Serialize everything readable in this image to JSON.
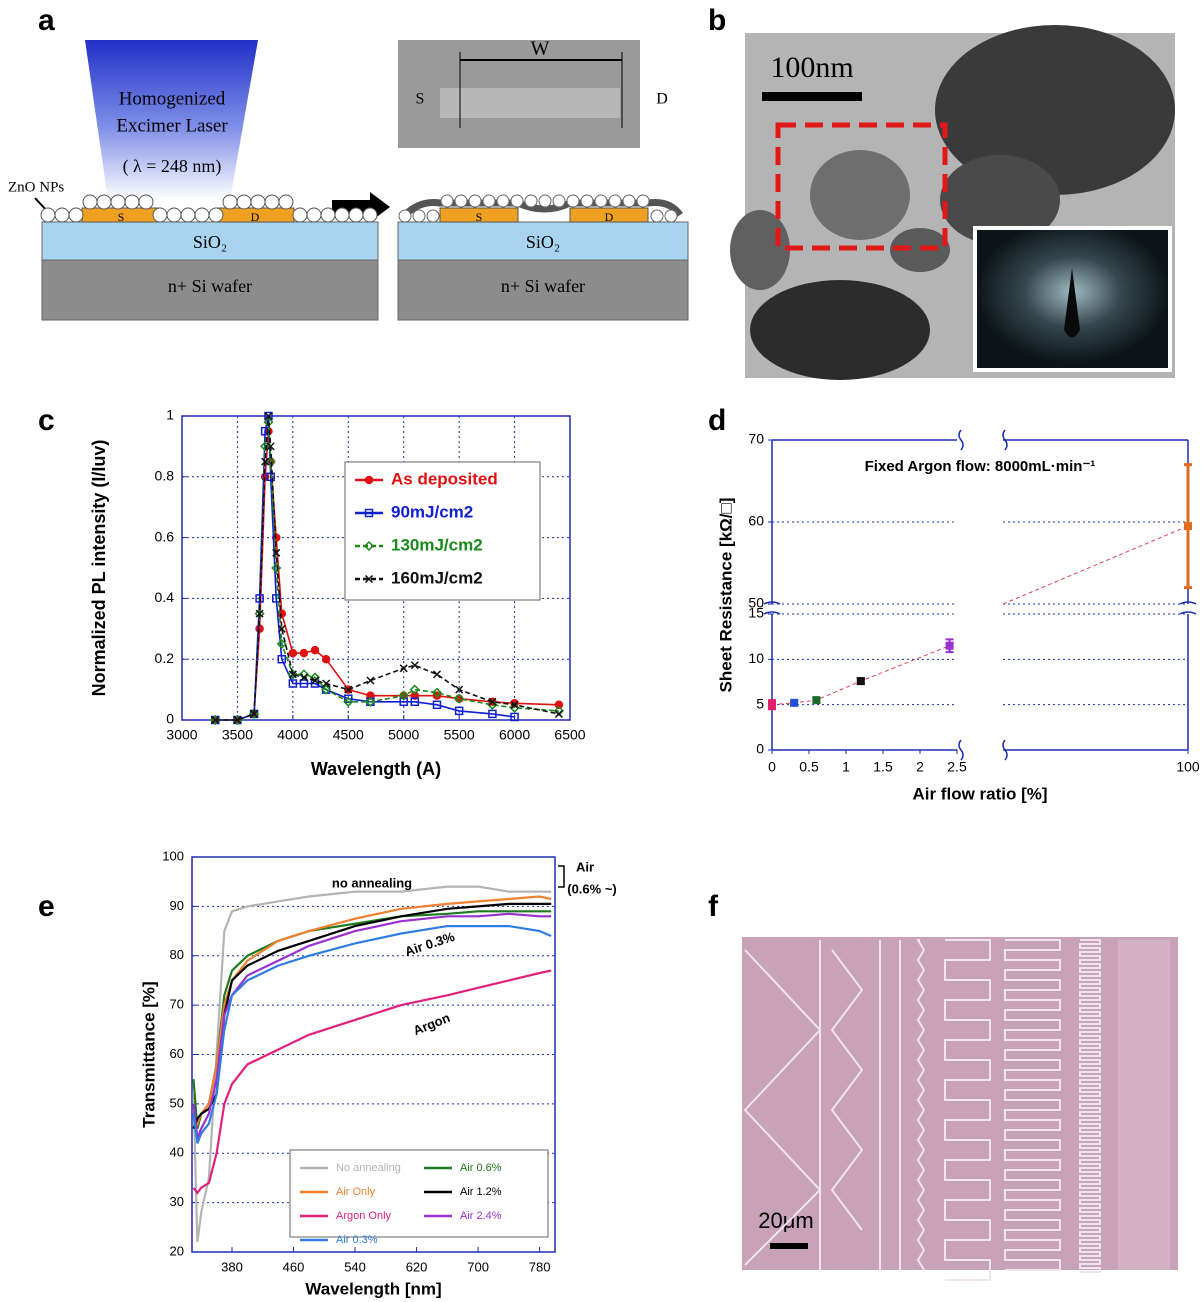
{
  "panel_labels": [
    "a",
    "b",
    "c",
    "d",
    "e",
    "f"
  ],
  "diagram_a": {
    "laser": [
      "Homogenized",
      "Excimer Laser",
      "( λ = 248 nm)"
    ],
    "nps": "ZnO NPs",
    "source": "S",
    "drain": "D",
    "oxide": "SiO₂",
    "wafer": "n+ Si wafer",
    "width": "W"
  },
  "image_b": {
    "scale": "100nm"
  },
  "image_f": {
    "scale": "20μm"
  },
  "chart_data": [
    {
      "type": "line",
      "xlabel": "Wavelength (A)",
      "ylabel": "Normalized PL intensity (I/Iuv)",
      "grid": "both",
      "legend": "upper right",
      "xlim": [
        3000,
        6500
      ],
      "xticks": [
        3000,
        3500,
        4000,
        4500,
        5000,
        5500,
        6000,
        6500
      ],
      "ylim": [
        0,
        1
      ],
      "yticks": [
        0,
        0.2,
        0.4,
        0.6,
        0.8,
        1
      ],
      "x": [
        3300,
        3500,
        3650,
        3700,
        3750,
        3780,
        3800,
        3850,
        3900,
        4000,
        4100,
        4200,
        4300,
        4500,
        4700,
        5000,
        5100,
        5300,
        5500,
        5800,
        6000,
        6400
      ],
      "series": [
        {
          "name": "As deposited",
          "color": "#e01010",
          "marker": "circle",
          "linestyle": "solid",
          "values": [
            0,
            0,
            0.02,
            0.3,
            0.8,
            0.95,
            0.85,
            0.6,
            0.35,
            0.22,
            0.22,
            0.23,
            0.2,
            0.1,
            0.08,
            0.08,
            0.08,
            0.08,
            0.07,
            0.06,
            0.055,
            0.05
          ]
        },
        {
          "name": "90mJ/cm2",
          "color": "#1020d0",
          "marker": "square",
          "linestyle": "solid",
          "values": [
            0,
            0,
            0.02,
            0.4,
            0.95,
            1,
            0.8,
            0.4,
            0.2,
            0.12,
            0.12,
            0.12,
            0.1,
            0.07,
            0.06,
            0.06,
            0.06,
            0.05,
            0.03,
            0.02,
            0.01,
            null
          ]
        },
        {
          "name": "130mJ/cm2",
          "color": "#1a8a1a",
          "marker": "diamond",
          "linestyle": "dashed",
          "values": [
            0,
            0,
            0.02,
            0.35,
            0.9,
            0.98,
            0.85,
            0.5,
            0.25,
            0.15,
            0.15,
            0.14,
            0.1,
            0.06,
            0.06,
            0.08,
            0.1,
            0.09,
            0.07,
            0.05,
            0.04,
            0.03
          ]
        },
        {
          "name": "160mJ/cm2",
          "color": "#111111",
          "marker": "cross",
          "linestyle": "dashed",
          "values": [
            0,
            0,
            0.02,
            0.35,
            0.85,
            1,
            0.9,
            0.55,
            0.3,
            0.15,
            0.14,
            0.13,
            0.12,
            0.1,
            0.13,
            0.17,
            0.18,
            0.15,
            0.1,
            0.06,
            0.05,
            0.02
          ]
        }
      ]
    },
    {
      "type": "errorbar",
      "xlabel": "Air flow ratio [%]",
      "ylabel": "Sheet Resistance [kΩ/□]",
      "annotation": "Fixed Argon flow: 8000mL·min⁻¹",
      "grid": "y",
      "xlim": [
        0,
        100
      ],
      "xticks": [
        0,
        0.5,
        1,
        1.5,
        2,
        2.5,
        100
      ],
      "xbreak": [
        2.5,
        100
      ],
      "ylim": [
        0,
        70
      ],
      "yticks": [
        0,
        5,
        10,
        15,
        50,
        60,
        70
      ],
      "ybreak": [
        15,
        50
      ],
      "x": [
        0,
        0.3,
        0.6,
        1.2,
        2.4,
        100
      ],
      "values": [
        5,
        5.2,
        5.5,
        7.6,
        11.5,
        59.5
      ],
      "errors": [
        0.5,
        0.2,
        0.2,
        0.3,
        0.7,
        7.5
      ],
      "colors": [
        "#e0206a",
        "#2050d0",
        "#1a6a2a",
        "#111111",
        "#9b30d0",
        "#e06a20"
      ]
    },
    {
      "type": "line",
      "xlabel": "Wavelength [nm]",
      "ylabel": "Transmittance [%]",
      "grid": "y",
      "legend": "lower right",
      "annotations": [
        "no annealing",
        "Air",
        "(0.6% ~)",
        "Air 0.3%",
        "Argon"
      ],
      "xlim": [
        328,
        800
      ],
      "xticks": [
        380,
        460,
        540,
        620,
        700,
        780
      ],
      "ylim": [
        20,
        100
      ],
      "yticks": [
        20,
        30,
        40,
        50,
        60,
        70,
        80,
        90,
        100
      ],
      "x": [
        330,
        335,
        340,
        350,
        360,
        370,
        380,
        400,
        440,
        480,
        540,
        600,
        660,
        700,
        740,
        780,
        795
      ],
      "series": [
        {
          "name": "No annealing",
          "color": "#b4b4b4",
          "values": [
            52,
            22,
            28,
            35,
            60,
            85,
            89,
            90,
            91,
            92,
            93,
            93,
            94,
            94,
            93,
            93,
            93
          ]
        },
        {
          "name": "Air 0.6%",
          "color": "#1e7a1e",
          "values": [
            55,
            45,
            48,
            50,
            58,
            72,
            77,
            80,
            83,
            85,
            86.5,
            88,
            88.5,
            89,
            89,
            89,
            89
          ]
        },
        {
          "name": "Air Only",
          "color": "#f08030",
          "values": [
            48,
            46,
            48,
            50,
            58,
            70,
            75,
            79,
            83,
            85,
            87.5,
            89.5,
            90.5,
            91,
            91.5,
            92,
            91.5
          ]
        },
        {
          "name": "Air 1.2%",
          "color": "#000000",
          "values": [
            45,
            47,
            48,
            49,
            52,
            68,
            75,
            78,
            81,
            83,
            86,
            88,
            89.5,
            90,
            90.5,
            90.5,
            90.5
          ]
        },
        {
          "name": "Argon Only",
          "color": "#e0207a",
          "values": [
            33,
            32,
            33,
            34,
            40,
            50,
            54,
            58,
            61,
            64,
            67,
            70,
            72,
            73.5,
            75,
            76.5,
            77
          ]
        },
        {
          "name": "Air 2.4%",
          "color": "#9b30d0",
          "values": [
            50,
            43,
            45,
            48,
            55,
            68,
            72,
            76,
            79,
            82,
            85,
            87,
            88,
            88,
            88.5,
            88,
            88
          ]
        },
        {
          "name": "Air 0.3%",
          "color": "#2f7de0",
          "values": [
            48,
            42,
            44,
            46,
            52,
            65,
            72,
            75,
            78,
            80,
            82.5,
            84.5,
            86,
            86,
            86,
            85,
            84
          ]
        }
      ]
    }
  ]
}
